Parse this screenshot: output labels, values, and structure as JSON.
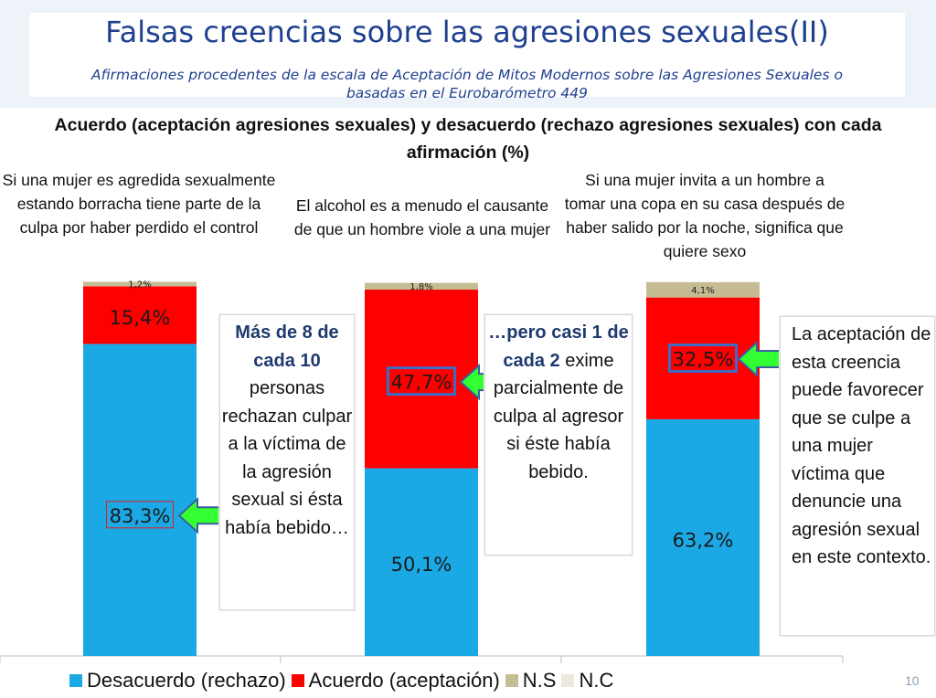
{
  "slide": {
    "title": "Falsas creencias sobre las agresiones sexuales(II)",
    "subtitle": "Afirmaciones procedentes de la escala de Aceptación de Mitos Modernos sobre las Agresiones Sexuales o basadas en el Eurobarómetro 449",
    "page_number": "10"
  },
  "callouts": {
    "left_bold": "Más de 8 de cada 10",
    "left_text": "personas rechazan culpar a la víctima de la agresión sexual si ésta había bebido…",
    "middle_bold": "…pero casi 1 de cada 2",
    "middle_text": "exime parcialmente de culpa al agresor si éste había bebido.",
    "right_text": "La aceptación de esta creencia puede favorecer que se culpe a una mujer víctima que denuncie una agresión sexual en este contexto."
  },
  "chart_data": {
    "type": "bar",
    "stacked": true,
    "title": "Acuerdo (aceptación agresiones sexuales) y desacuerdo (rechazo agresiones sexuales) con cada afirmación (%)",
    "categories": [
      "Si una mujer es agredida sexualmente estando borracha tiene parte de la culpa por haber perdido el control",
      "El alcohol es a menudo el causante de que un hombre viole a una mujer",
      "Si una mujer invita a un hombre a tomar una copa en su casa después de haber salido por la noche, significa que quiere sexo"
    ],
    "series": [
      {
        "name": "Desacuerdo (rechazo)",
        "values": [
          83.3,
          50.1,
          63.2
        ],
        "labels": [
          "83,3%",
          "50,1%",
          "63,2%"
        ],
        "color": "#1ba9e6"
      },
      {
        "name": "Acuerdo (aceptación)",
        "values": [
          15.4,
          47.7,
          32.5
        ],
        "labels": [
          "15,4%",
          "47,7%",
          "32,5%"
        ],
        "color": "#ff0000"
      },
      {
        "name": "N.S",
        "values": [
          1.2,
          1.8,
          4.1
        ],
        "labels": [
          "1,2%",
          "1,8%",
          "4,1%"
        ],
        "color": "#c6bc93"
      },
      {
        "name": "N.C",
        "values": [
          0,
          0,
          0
        ],
        "labels": [
          "",
          "",
          ""
        ],
        "color": "#ebe8de"
      }
    ],
    "ylim": [
      0,
      100
    ],
    "highlighted": [
      "0:0",
      "1:1",
      "2:1"
    ],
    "legend_position": "bottom"
  }
}
